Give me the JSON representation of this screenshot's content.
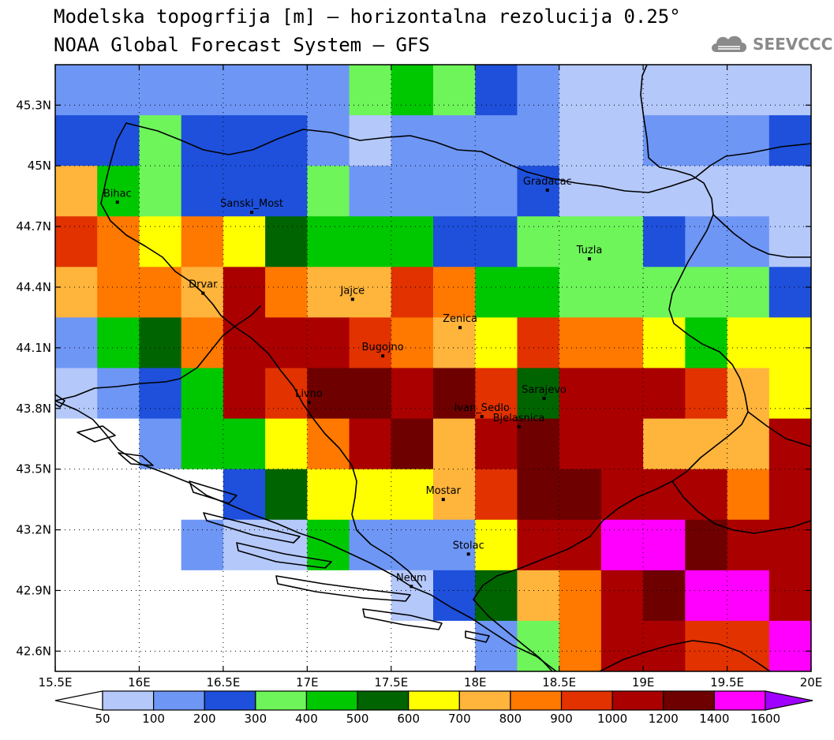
{
  "title_line1": "Modelska topogrfija [m] – horizontalna rezolucija 0.25°",
  "title_line2": "NOAA Global Forecast System – GFS",
  "logo_text": "SEEVCCC",
  "logo_icon": "cloud-icon",
  "chart_data": {
    "type": "heatmap",
    "lon_range": [
      15.5,
      20.0
    ],
    "lat_range": [
      42.5,
      45.5
    ],
    "grid_step_deg": 0.25,
    "x_ticks": [
      "15.5E",
      "16E",
      "16.5E",
      "17E",
      "17.5E",
      "18E",
      "18.5E",
      "19E",
      "19.5E",
      "20E"
    ],
    "y_ticks": [
      "45.3N",
      "45N",
      "44.7N",
      "44.4N",
      "44.1N",
      "43.8N",
      "43.5N",
      "43.2N",
      "42.9N",
      "42.6N"
    ],
    "colorbar": {
      "boundaries": [
        "50",
        "100",
        "200",
        "300",
        "400",
        "500",
        "600",
        "700",
        "800",
        "900",
        "1000",
        "1200",
        "1400",
        "1600"
      ],
      "colors": [
        "#ffffff",
        "#b4c8fa",
        "#6e96f5",
        "#1e50dc",
        "#6ef55a",
        "#00c800",
        "#006400",
        "#ffff00",
        "#ffb43c",
        "#ff7800",
        "#e13200",
        "#aa0000",
        "#6e0000",
        "#ff00ff",
        "#a000ff"
      ]
    },
    "grid_columns_lon": [
      "15.5",
      "15.75",
      "16.0",
      "16.25",
      "16.5",
      "16.75",
      "17.0",
      "17.25",
      "17.5",
      "17.75",
      "18.0",
      "18.25",
      "18.5",
      "18.75",
      "19.0",
      "19.25",
      "19.5",
      "19.75"
    ],
    "grid_rows_lat": [
      "45.5",
      "45.25",
      "45.0",
      "44.75",
      "44.5",
      "44.25",
      "44.0",
      "43.75",
      "43.5",
      "43.25",
      "43.0",
      "42.75"
    ],
    "grid_class_index": [
      [
        2,
        2,
        2,
        2,
        2,
        2,
        2,
        4,
        5,
        4,
        3,
        2,
        1,
        1,
        1,
        1,
        1,
        1
      ],
      [
        3,
        3,
        4,
        3,
        3,
        3,
        2,
        1,
        2,
        2,
        2,
        2,
        1,
        1,
        2,
        2,
        2,
        3
      ],
      [
        8,
        5,
        4,
        3,
        3,
        3,
        4,
        2,
        2,
        2,
        2,
        3,
        1,
        1,
        1,
        1,
        1,
        1
      ],
      [
        10,
        9,
        7,
        9,
        7,
        6,
        5,
        5,
        5,
        3,
        3,
        4,
        4,
        4,
        3,
        2,
        2,
        1
      ],
      [
        8,
        9,
        9,
        8,
        11,
        9,
        8,
        8,
        10,
        9,
        5,
        5,
        4,
        4,
        4,
        4,
        4,
        3
      ],
      [
        2,
        5,
        6,
        9,
        11,
        11,
        11,
        10,
        9,
        8,
        7,
        10,
        9,
        9,
        7,
        5,
        7,
        7
      ],
      [
        1,
        2,
        3,
        5,
        11,
        10,
        12,
        12,
        11,
        12,
        10,
        6,
        11,
        11,
        11,
        10,
        8,
        7
      ],
      [
        0,
        0,
        2,
        5,
        5,
        7,
        9,
        11,
        12,
        8,
        11,
        12,
        11,
        11,
        8,
        8,
        8,
        11
      ],
      [
        0,
        0,
        0,
        0,
        3,
        6,
        7,
        7,
        7,
        8,
        10,
        12,
        12,
        11,
        11,
        11,
        9,
        11
      ],
      [
        0,
        0,
        0,
        2,
        1,
        1,
        5,
        2,
        2,
        2,
        7,
        11,
        11,
        13,
        13,
        12,
        11,
        11
      ],
      [
        0,
        0,
        0,
        0,
        0,
        0,
        0,
        0,
        1,
        3,
        6,
        8,
        9,
        11,
        12,
        13,
        13,
        11
      ],
      [
        0,
        0,
        0,
        0,
        0,
        0,
        0,
        0,
        0,
        0,
        2,
        4,
        9,
        11,
        11,
        10,
        10,
        13
      ]
    ],
    "cities": [
      {
        "name": "Bihac",
        "lon": 15.87,
        "lat": 44.82
      },
      {
        "name": "Sanski_Most",
        "lon": 16.67,
        "lat": 44.77
      },
      {
        "name": "Gradacac",
        "lon": 18.43,
        "lat": 44.88
      },
      {
        "name": "Tuzla",
        "lon": 18.68,
        "lat": 44.54
      },
      {
        "name": "Drvar",
        "lon": 16.38,
        "lat": 44.37
      },
      {
        "name": "Jajce",
        "lon": 17.27,
        "lat": 44.34
      },
      {
        "name": "Zenica",
        "lon": 17.91,
        "lat": 44.2
      },
      {
        "name": "Bugojno",
        "lon": 17.45,
        "lat": 44.06
      },
      {
        "name": "Livno",
        "lon": 17.01,
        "lat": 43.83
      },
      {
        "name": "Sarajevo",
        "lon": 18.41,
        "lat": 43.85
      },
      {
        "name": "Ivan_Sedlo",
        "lon": 18.04,
        "lat": 43.76
      },
      {
        "name": "Bjelasnica",
        "lon": 18.26,
        "lat": 43.71
      },
      {
        "name": "Mostar",
        "lon": 17.81,
        "lat": 43.35
      },
      {
        "name": "Stolac",
        "lon": 17.96,
        "lat": 43.08
      },
      {
        "name": "Neum",
        "lon": 17.62,
        "lat": 42.92
      }
    ]
  }
}
